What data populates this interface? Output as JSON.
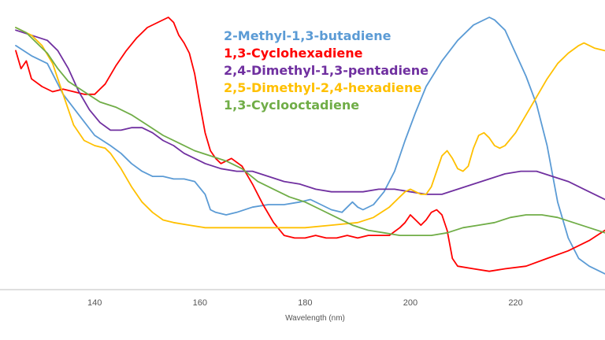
{
  "chart_data": {
    "type": "line",
    "title": "",
    "xlabel": "Wavelength (nm)",
    "ylabel": "",
    "xlim": [
      125,
      237
    ],
    "ylim": [
      0,
      1
    ],
    "x_ticks": [
      140,
      160,
      180,
      200,
      220
    ],
    "grid": false,
    "legend_position": "top-center",
    "series": [
      {
        "name": "2-Methyl-1,3-butadiene",
        "color": "#5b9bd5",
        "points": [
          [
            125,
            0.89
          ],
          [
            128,
            0.85
          ],
          [
            131,
            0.82
          ],
          [
            134,
            0.7
          ],
          [
            137,
            0.62
          ],
          [
            140,
            0.54
          ],
          [
            143,
            0.5
          ],
          [
            145,
            0.47
          ],
          [
            147,
            0.43
          ],
          [
            149,
            0.4
          ],
          [
            151,
            0.38
          ],
          [
            153,
            0.38
          ],
          [
            155,
            0.37
          ],
          [
            157,
            0.37
          ],
          [
            159,
            0.36
          ],
          [
            161,
            0.31
          ],
          [
            162,
            0.25
          ],
          [
            163,
            0.24
          ],
          [
            165,
            0.23
          ],
          [
            167,
            0.24
          ],
          [
            170,
            0.26
          ],
          [
            173,
            0.27
          ],
          [
            176,
            0.27
          ],
          [
            179,
            0.28
          ],
          [
            181,
            0.29
          ],
          [
            183,
            0.27
          ],
          [
            185,
            0.25
          ],
          [
            187,
            0.24
          ],
          [
            189,
            0.28
          ],
          [
            190,
            0.26
          ],
          [
            191,
            0.25
          ],
          [
            193,
            0.27
          ],
          [
            195,
            0.32
          ],
          [
            197,
            0.4
          ],
          [
            199,
            0.52
          ],
          [
            201,
            0.63
          ],
          [
            203,
            0.73
          ],
          [
            206,
            0.83
          ],
          [
            209,
            0.91
          ],
          [
            212,
            0.97
          ],
          [
            215,
            1.0
          ],
          [
            216,
            0.99
          ],
          [
            218,
            0.95
          ],
          [
            220,
            0.86
          ],
          [
            222,
            0.77
          ],
          [
            224,
            0.66
          ],
          [
            226,
            0.5
          ],
          [
            228,
            0.28
          ],
          [
            230,
            0.14
          ],
          [
            232,
            0.06
          ],
          [
            234,
            0.03
          ],
          [
            237,
            0.0
          ]
        ]
      },
      {
        "name": "1,3-Cyclohexadiene",
        "color": "#ff0000",
        "points": [
          [
            125,
            0.87
          ],
          [
            126,
            0.8
          ],
          [
            127,
            0.83
          ],
          [
            128,
            0.76
          ],
          [
            130,
            0.73
          ],
          [
            132,
            0.71
          ],
          [
            134,
            0.72
          ],
          [
            136,
            0.71
          ],
          [
            138,
            0.7
          ],
          [
            140,
            0.7
          ],
          [
            142,
            0.74
          ],
          [
            144,
            0.81
          ],
          [
            146,
            0.87
          ],
          [
            148,
            0.92
          ],
          [
            150,
            0.96
          ],
          [
            152,
            0.98
          ],
          [
            154,
            1.0
          ],
          [
            155,
            0.98
          ],
          [
            156,
            0.93
          ],
          [
            157,
            0.9
          ],
          [
            158,
            0.86
          ],
          [
            159,
            0.78
          ],
          [
            160,
            0.66
          ],
          [
            161,
            0.55
          ],
          [
            162,
            0.48
          ],
          [
            163,
            0.45
          ],
          [
            164,
            0.43
          ],
          [
            166,
            0.45
          ],
          [
            168,
            0.42
          ],
          [
            170,
            0.35
          ],
          [
            172,
            0.27
          ],
          [
            174,
            0.2
          ],
          [
            176,
            0.15
          ],
          [
            178,
            0.14
          ],
          [
            180,
            0.14
          ],
          [
            182,
            0.15
          ],
          [
            184,
            0.14
          ],
          [
            186,
            0.14
          ],
          [
            188,
            0.15
          ],
          [
            190,
            0.14
          ],
          [
            192,
            0.15
          ],
          [
            194,
            0.15
          ],
          [
            196,
            0.15
          ],
          [
            198,
            0.18
          ],
          [
            199,
            0.2
          ],
          [
            200,
            0.23
          ],
          [
            201,
            0.21
          ],
          [
            202,
            0.19
          ],
          [
            203,
            0.21
          ],
          [
            204,
            0.24
          ],
          [
            205,
            0.25
          ],
          [
            206,
            0.23
          ],
          [
            207,
            0.17
          ],
          [
            208,
            0.06
          ],
          [
            209,
            0.03
          ],
          [
            212,
            0.02
          ],
          [
            215,
            0.01
          ],
          [
            218,
            0.02
          ],
          [
            222,
            0.03
          ],
          [
            226,
            0.06
          ],
          [
            230,
            0.09
          ],
          [
            234,
            0.13
          ],
          [
            237,
            0.17
          ]
        ]
      },
      {
        "name": "2,4-Dimethyl-1,3-pentadiene",
        "color": "#7030a0",
        "points": [
          [
            125,
            0.95
          ],
          [
            128,
            0.93
          ],
          [
            131,
            0.91
          ],
          [
            133,
            0.87
          ],
          [
            135,
            0.8
          ],
          [
            137,
            0.71
          ],
          [
            139,
            0.64
          ],
          [
            141,
            0.59
          ],
          [
            143,
            0.56
          ],
          [
            145,
            0.56
          ],
          [
            147,
            0.57
          ],
          [
            149,
            0.57
          ],
          [
            151,
            0.55
          ],
          [
            153,
            0.52
          ],
          [
            155,
            0.5
          ],
          [
            157,
            0.47
          ],
          [
            159,
            0.45
          ],
          [
            161,
            0.43
          ],
          [
            164,
            0.41
          ],
          [
            167,
            0.4
          ],
          [
            170,
            0.4
          ],
          [
            173,
            0.38
          ],
          [
            176,
            0.36
          ],
          [
            179,
            0.35
          ],
          [
            182,
            0.33
          ],
          [
            185,
            0.32
          ],
          [
            188,
            0.32
          ],
          [
            191,
            0.32
          ],
          [
            194,
            0.33
          ],
          [
            197,
            0.33
          ],
          [
            200,
            0.32
          ],
          [
            203,
            0.31
          ],
          [
            206,
            0.31
          ],
          [
            209,
            0.33
          ],
          [
            212,
            0.35
          ],
          [
            215,
            0.37
          ],
          [
            218,
            0.39
          ],
          [
            221,
            0.4
          ],
          [
            224,
            0.4
          ],
          [
            227,
            0.38
          ],
          [
            230,
            0.36
          ],
          [
            233,
            0.33
          ],
          [
            236,
            0.3
          ],
          [
            237,
            0.29
          ]
        ]
      },
      {
        "name": "2,5-Dimethyl-2,4-hexadiene",
        "color": "#ffc000",
        "points": [
          [
            125,
            0.96
          ],
          [
            128,
            0.93
          ],
          [
            130,
            0.89
          ],
          [
            132,
            0.82
          ],
          [
            134,
            0.7
          ],
          [
            136,
            0.58
          ],
          [
            138,
            0.52
          ],
          [
            140,
            0.5
          ],
          [
            142,
            0.49
          ],
          [
            143,
            0.47
          ],
          [
            145,
            0.41
          ],
          [
            147,
            0.34
          ],
          [
            149,
            0.28
          ],
          [
            151,
            0.24
          ],
          [
            153,
            0.21
          ],
          [
            155,
            0.2
          ],
          [
            158,
            0.19
          ],
          [
            161,
            0.18
          ],
          [
            165,
            0.18
          ],
          [
            170,
            0.18
          ],
          [
            175,
            0.18
          ],
          [
            180,
            0.18
          ],
          [
            185,
            0.19
          ],
          [
            190,
            0.2
          ],
          [
            193,
            0.22
          ],
          [
            196,
            0.26
          ],
          [
            198,
            0.3
          ],
          [
            199,
            0.32
          ],
          [
            200,
            0.33
          ],
          [
            201,
            0.32
          ],
          [
            202,
            0.31
          ],
          [
            203,
            0.31
          ],
          [
            204,
            0.34
          ],
          [
            205,
            0.4
          ],
          [
            206,
            0.46
          ],
          [
            207,
            0.48
          ],
          [
            208,
            0.45
          ],
          [
            209,
            0.41
          ],
          [
            210,
            0.4
          ],
          [
            211,
            0.42
          ],
          [
            212,
            0.49
          ],
          [
            213,
            0.54
          ],
          [
            214,
            0.55
          ],
          [
            215,
            0.53
          ],
          [
            216,
            0.5
          ],
          [
            217,
            0.49
          ],
          [
            218,
            0.5
          ],
          [
            220,
            0.55
          ],
          [
            222,
            0.62
          ],
          [
            224,
            0.69
          ],
          [
            226,
            0.76
          ],
          [
            228,
            0.82
          ],
          [
            230,
            0.86
          ],
          [
            232,
            0.89
          ],
          [
            233,
            0.9
          ],
          [
            235,
            0.88
          ],
          [
            237,
            0.87
          ]
        ]
      },
      {
        "name": "1,3-Cyclooctadiene",
        "color": "#70ad47",
        "points": [
          [
            125,
            0.96
          ],
          [
            127,
            0.94
          ],
          [
            129,
            0.9
          ],
          [
            131,
            0.86
          ],
          [
            133,
            0.8
          ],
          [
            135,
            0.75
          ],
          [
            138,
            0.71
          ],
          [
            141,
            0.67
          ],
          [
            144,
            0.65
          ],
          [
            147,
            0.62
          ],
          [
            150,
            0.58
          ],
          [
            153,
            0.54
          ],
          [
            156,
            0.51
          ],
          [
            159,
            0.48
          ],
          [
            162,
            0.46
          ],
          [
            165,
            0.44
          ],
          [
            168,
            0.41
          ],
          [
            171,
            0.36
          ],
          [
            174,
            0.33
          ],
          [
            177,
            0.3
          ],
          [
            180,
            0.28
          ],
          [
            183,
            0.25
          ],
          [
            186,
            0.22
          ],
          [
            189,
            0.19
          ],
          [
            192,
            0.17
          ],
          [
            195,
            0.16
          ],
          [
            198,
            0.15
          ],
          [
            201,
            0.15
          ],
          [
            204,
            0.15
          ],
          [
            207,
            0.16
          ],
          [
            210,
            0.18
          ],
          [
            213,
            0.19
          ],
          [
            216,
            0.2
          ],
          [
            219,
            0.22
          ],
          [
            222,
            0.23
          ],
          [
            225,
            0.23
          ],
          [
            228,
            0.22
          ],
          [
            231,
            0.2
          ],
          [
            234,
            0.18
          ],
          [
            237,
            0.16
          ]
        ]
      }
    ]
  }
}
